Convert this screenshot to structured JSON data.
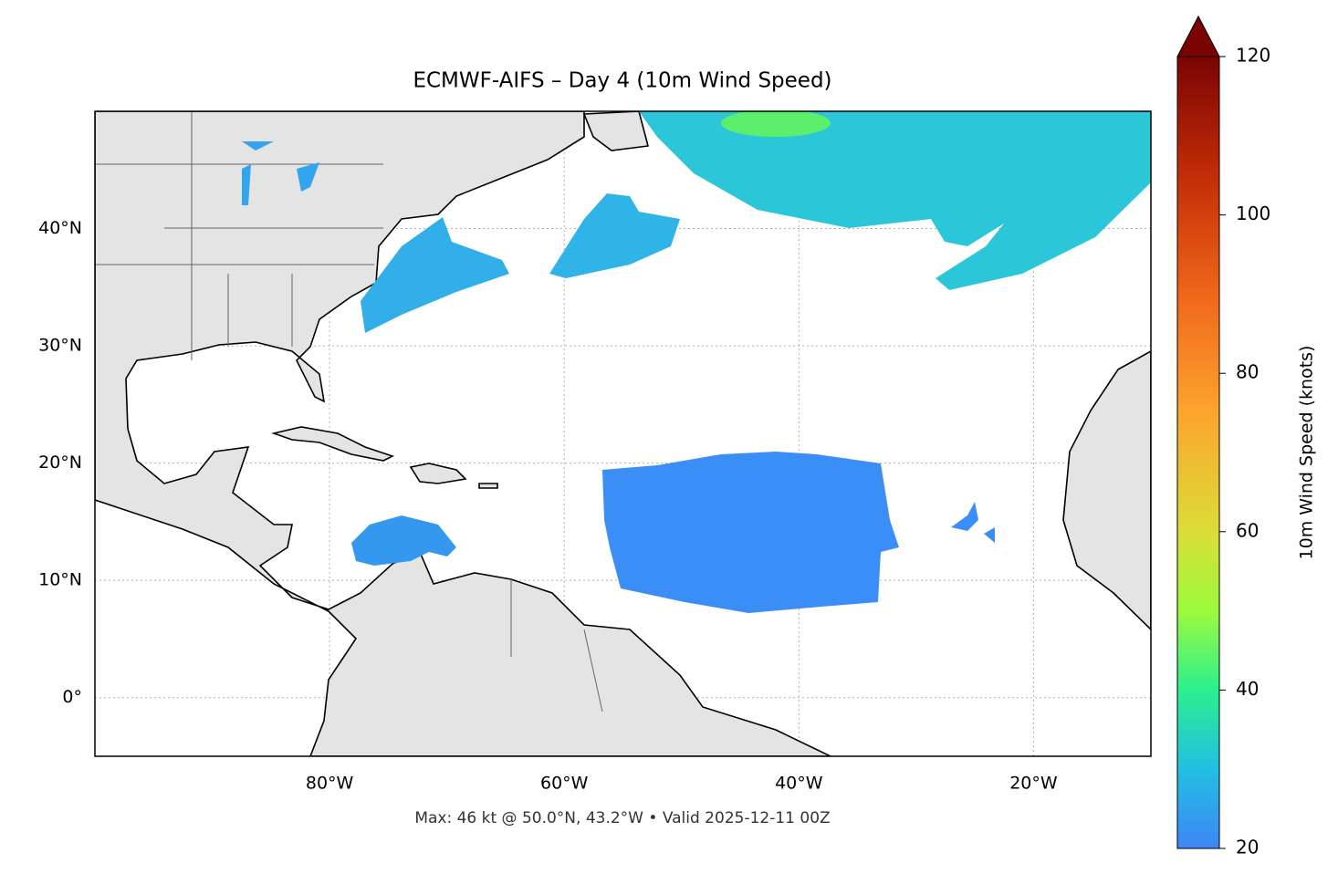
{
  "chart_data": {
    "type": "map",
    "title": "ECMWF-AIFS – Day 4 (10m Wind Speed)",
    "subtitle": "Max: 46 kt @ 50.0°N, 43.2°W • Valid 2025-12-11 00Z",
    "xlim": [
      -100,
      -10
    ],
    "ylim": [
      -5,
      50
    ],
    "xticks": [
      {
        "value": -80,
        "label": "80°W"
      },
      {
        "value": -60,
        "label": "60°W"
      },
      {
        "value": -40,
        "label": "40°W"
      },
      {
        "value": -20,
        "label": "20°W"
      }
    ],
    "yticks": [
      {
        "value": 0,
        "label": "0°"
      },
      {
        "value": 10,
        "label": "10°N"
      },
      {
        "value": 20,
        "label": "20°N"
      },
      {
        "value": 30,
        "label": "30°N"
      },
      {
        "value": 40,
        "label": "40°N"
      }
    ],
    "grid": true,
    "colorbar": {
      "label": "10m Wind Speed (knots)",
      "lim": [
        20,
        120
      ],
      "ticks": [
        20,
        40,
        60,
        80,
        100,
        120
      ]
    }
  }
}
